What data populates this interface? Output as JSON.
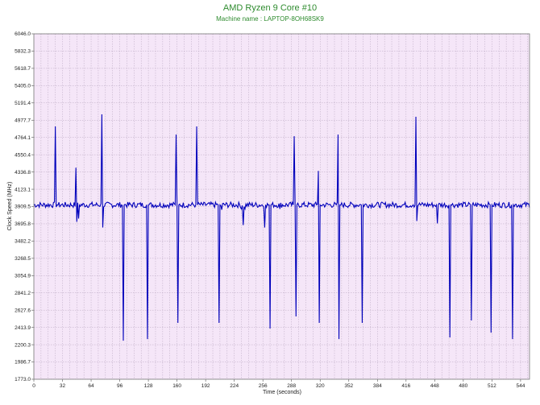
{
  "chart_data": {
    "type": "line",
    "title": "AMD Ryzen 9 Core #10",
    "subtitle": "Machine name : LAPTOP-8OH68SK9",
    "xlabel": "Time (seconds)",
    "ylabel": "Clock Speed (MHz)",
    "xlim": [
      0,
      554
    ],
    "ylim": [
      1773.0,
      6046.0
    ],
    "x_ticks": [
      0,
      32,
      64,
      96,
      128,
      160,
      192,
      224,
      256,
      288,
      320,
      352,
      384,
      416,
      448,
      480,
      512,
      544
    ],
    "y_ticks": [
      "1773.0",
      "1986.7",
      "2200.3",
      "2413.9",
      "2627.6",
      "2841.2",
      "3054.9",
      "3268.5",
      "3482.2",
      "3695.8",
      "3909.5",
      "4123.1",
      "4336.8",
      "4550.4",
      "4764.1",
      "4977.7",
      "5191.4",
      "5405.0",
      "5618.7",
      "5832.3",
      "6046.0"
    ],
    "grid": true,
    "background_color": "#f5e6f8",
    "line_color": "#0000bb",
    "baseline": 3930,
    "spikes": [
      [
        24,
        4900
      ],
      [
        26,
        3930
      ],
      [
        47,
        4390
      ],
      [
        48,
        3720
      ],
      [
        50,
        3760
      ],
      [
        76,
        5050
      ],
      [
        77,
        3650
      ],
      [
        98,
        3930
      ],
      [
        100,
        2250
      ],
      [
        101,
        3930
      ],
      [
        126,
        3930
      ],
      [
        127,
        2270
      ],
      [
        128,
        3930
      ],
      [
        158,
        3930
      ],
      [
        159,
        4800
      ],
      [
        160,
        3930
      ],
      [
        161,
        2470
      ],
      [
        162,
        3930
      ],
      [
        181,
        3930
      ],
      [
        182,
        4900
      ],
      [
        183,
        3930
      ],
      [
        206,
        3930
      ],
      [
        207,
        2470
      ],
      [
        208,
        3930
      ],
      [
        210,
        3870
      ],
      [
        232,
        3880
      ],
      [
        234,
        3680
      ],
      [
        236,
        3880
      ],
      [
        258,
        3650
      ],
      [
        259,
        3930
      ],
      [
        263,
        3930
      ],
      [
        264,
        2400
      ],
      [
        265,
        3930
      ],
      [
        275,
        3880
      ],
      [
        290,
        3930
      ],
      [
        291,
        4780
      ],
      [
        292,
        3930
      ],
      [
        293,
        2550
      ],
      [
        294,
        3930
      ],
      [
        316,
        3930
      ],
      [
        318,
        4350
      ],
      [
        319,
        2470
      ],
      [
        320,
        3930
      ],
      [
        338,
        3930
      ],
      [
        340,
        4800
      ],
      [
        341,
        2270
      ],
      [
        342,
        3930
      ],
      [
        366,
        3930
      ],
      [
        367,
        2470
      ],
      [
        368,
        3930
      ],
      [
        424,
        3930
      ],
      [
        427,
        5020
      ],
      [
        428,
        3730
      ],
      [
        430,
        3930
      ],
      [
        450,
        3930
      ],
      [
        451,
        3700
      ],
      [
        452,
        3930
      ],
      [
        464,
        3930
      ],
      [
        465,
        2290
      ],
      [
        466,
        3930
      ],
      [
        488,
        3930
      ],
      [
        489,
        2500
      ],
      [
        490,
        3930
      ],
      [
        510,
        3930
      ],
      [
        511,
        2350
      ],
      [
        512,
        3930
      ],
      [
        534,
        3930
      ],
      [
        535,
        2270
      ],
      [
        536,
        3930
      ]
    ]
  }
}
